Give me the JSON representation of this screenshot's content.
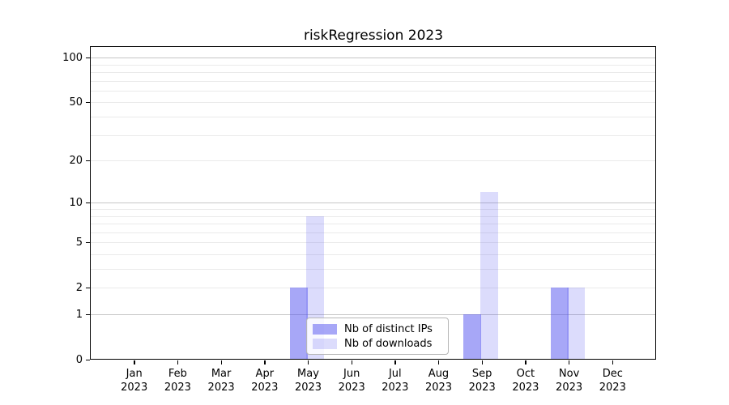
{
  "title": "riskRegression 2023",
  "accent_color": "#5050f0",
  "legend": {
    "items": [
      {
        "label": "Nb of distinct IPs",
        "color": "rgba(80,80,240,0.5)"
      },
      {
        "label": "Nb of downloads",
        "color": "rgba(80,80,240,0.2)"
      }
    ]
  },
  "chart_data": {
    "type": "bar",
    "title": "riskRegression 2023",
    "categories": [
      "Jan 2023",
      "Feb 2023",
      "Mar 2023",
      "Apr 2023",
      "May 2023",
      "Jun 2023",
      "Jul 2023",
      "Aug 2023",
      "Sep 2023",
      "Oct 2023",
      "Nov 2023",
      "Dec 2023"
    ],
    "series": [
      {
        "name": "Nb of distinct IPs",
        "color": "rgba(80,80,240,0.5)",
        "values": [
          0,
          0,
          0,
          0,
          2,
          0,
          0,
          0,
          1,
          0,
          2,
          0
        ]
      },
      {
        "name": "Nb of downloads",
        "color": "rgba(80,80,240,0.2)",
        "values": [
          0,
          0,
          0,
          0,
          8,
          0,
          0,
          0,
          12,
          0,
          2,
          0
        ]
      }
    ],
    "xlabel": "",
    "ylabel": "",
    "yscale": "log1p",
    "ylim": [
      0,
      118
    ],
    "yticks": [
      0,
      1,
      2,
      5,
      10,
      20,
      50,
      100
    ],
    "minor_gridlines": [
      1,
      2,
      3,
      4,
      5,
      6,
      7,
      8,
      9,
      10,
      20,
      30,
      40,
      50,
      60,
      70,
      80,
      90,
      100
    ],
    "major_gridlines": [
      1,
      10,
      100
    ],
    "grid": true,
    "legend_position": "lower center",
    "bar_color_dark": "#a8a8f7",
    "bar_color_light": "#dcdcfc",
    "gridline_color_minor": "#eaeaea",
    "gridline_color_major": "#c6c6c6"
  }
}
